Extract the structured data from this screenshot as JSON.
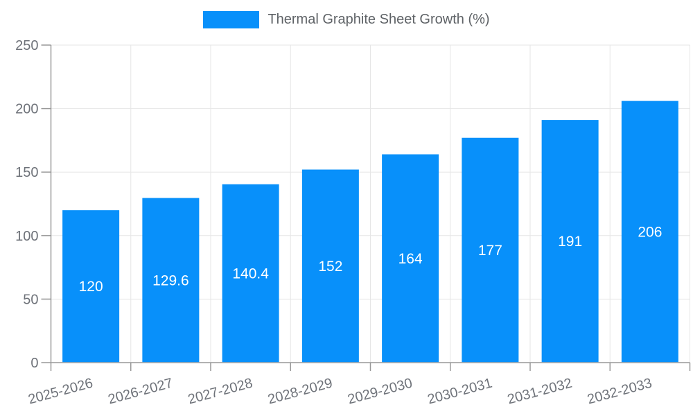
{
  "legend": {
    "label": "Thermal Graphite Sheet Growth (%)",
    "swatch_color": "#0890fa"
  },
  "chart_data": {
    "type": "bar",
    "title": "Thermal Graphite Sheet Growth (%)",
    "categories": [
      "2025-2026",
      "2026-2027",
      "2027-2028",
      "2028-2029",
      "2029-2030",
      "2030-2031",
      "2031-2032",
      "2032-2033"
    ],
    "values": [
      120,
      129.6,
      140.4,
      152,
      164,
      177,
      191,
      206
    ],
    "xlabel": "",
    "ylabel": "",
    "ylim": [
      0,
      250
    ],
    "yticks": [
      0,
      50,
      100,
      150,
      200,
      250
    ],
    "grid": true,
    "legend_position": "top-center",
    "x_label_rotation_deg": -15,
    "bar_color": "#0890fa",
    "value_label_color": "#ffffff",
    "axis_label_color": "#6e7279",
    "axis_line_color": "#999999",
    "gridline_color": "#e6e6e6",
    "background_color": "#ffffff"
  }
}
